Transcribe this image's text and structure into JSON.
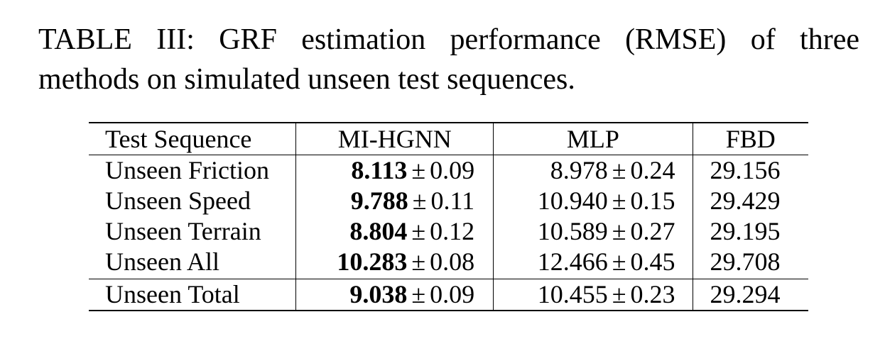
{
  "caption": {
    "line1": "TABLE III: GRF estimation performance (RMSE) of three",
    "line2": "methods on simulated unseen test sequences."
  },
  "table": {
    "headers": [
      "Test Sequence",
      "MI-HGNN",
      "MLP",
      "FBD"
    ],
    "pm_symbol": "±",
    "rows": [
      {
        "label": "Unseen Friction",
        "mihgnn_mean": "8.113",
        "mihgnn_std": "0.09",
        "mlp_mean": "8.978",
        "mlp_std": "0.24",
        "fbd": "29.156"
      },
      {
        "label": "Unseen Speed",
        "mihgnn_mean": "9.788",
        "mihgnn_std": "0.11",
        "mlp_mean": "10.940",
        "mlp_std": "0.15",
        "fbd": "29.429"
      },
      {
        "label": "Unseen Terrain",
        "mihgnn_mean": "8.804",
        "mihgnn_std": "0.12",
        "mlp_mean": "10.589",
        "mlp_std": "0.27",
        "fbd": "29.195"
      },
      {
        "label": "Unseen All",
        "mihgnn_mean": "10.283",
        "mihgnn_std": "0.08",
        "mlp_mean": "12.466",
        "mlp_std": "0.45",
        "fbd": "29.708"
      }
    ],
    "total": {
      "label": "Unseen Total",
      "mihgnn_mean": "9.038",
      "mihgnn_std": "0.09",
      "mlp_mean": "10.455",
      "mlp_std": "0.23",
      "fbd": "29.294"
    }
  }
}
